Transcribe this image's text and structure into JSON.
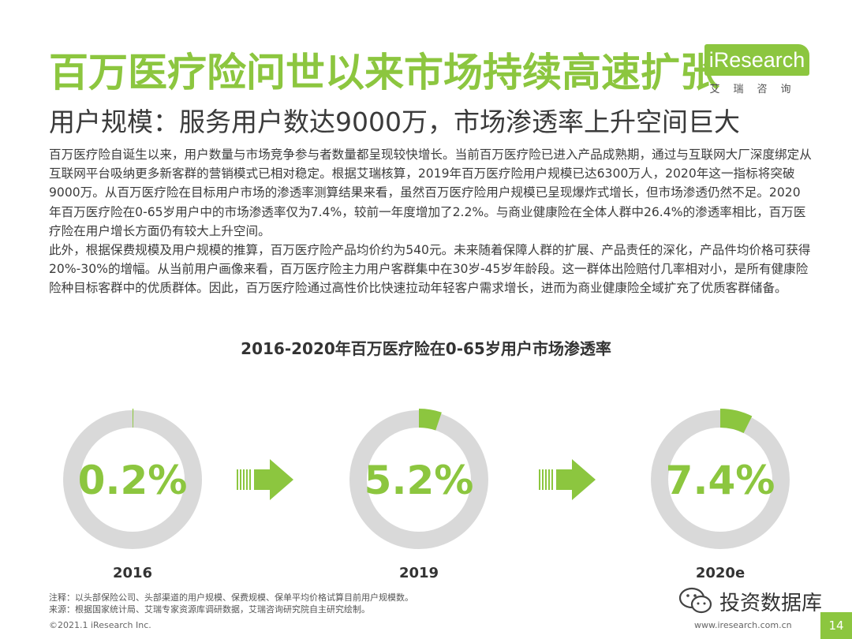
{
  "header": {
    "title": "百万医疗险问世以来市场持续高速扩张",
    "subtitle": "用户规模：服务用户数达9000万，市场渗透率上升空间巨大"
  },
  "logo": {
    "brand": "iResearch",
    "sub": "艾瑞咨询"
  },
  "body": {
    "paragraph1": "百万医疗险自诞生以来，用户数量与市场竞争参与者数量都呈现较快增长。当前百万医疗险已进入产品成熟期，通过与互联网大厂深度绑定从互联网平台吸纳更多新客群的营销模式已相对稳定。根据艾瑞核算，2019年百万医疗险用户规模已达6300万人，2020年这一指标将突破9000万。从百万医疗险在目标用户市场的渗透率测算结果来看，虽然百万医疗险用户规模已呈现爆炸式增长，但市场渗透仍然不足。2020年百万医疗险在0-65岁用户中的市场渗透率仅为7.4%，较前一年度增加了2.2%。与商业健康险在全体人群中26.4%的渗透率相比，百万医疗险在用户增长方面仍有较大上升空间。",
    "paragraph2": "此外，根据保费规模及用户规模的推算，百万医疗险产品均价约为540元。未来随着保障人群的扩展、产品责任的深化，产品件均价格可获得20%-30%的增幅。从当前用户画像来看，百万医疗险主力用户客群集中在30岁-45岁年龄段。这一群体出险赔付几率相对小，是所有健康险险种目标客群中的优质群体。因此，百万医疗险通过高性价比快速拉动年轻客户需求增长，进而为商业健康险全域扩充了优质客群储备。"
  },
  "chart_data": {
    "type": "donut",
    "title": "2016-2020年百万医疗险在0-65岁用户市场渗透率",
    "categories": [
      "2016",
      "2019",
      "2020e"
    ],
    "values": [
      0.2,
      5.2,
      7.4
    ],
    "labels": [
      "0.2%",
      "5.2%",
      "7.4%"
    ],
    "unit": "%",
    "colors": {
      "filled": "#8cc63f",
      "remaining": "#d9d9d9",
      "arrow": "#8cc63f"
    }
  },
  "footer": {
    "note": "注释：以头部保险公司、头部渠道的用户规模、保费规模、保单平均价格试算目前用户规模数。",
    "source": "来源：根据国家统计局、艾瑞专家资源库调研数据，艾瑞咨询研究院自主研究绘制。",
    "copyright": "©2021.1 iResearch Inc.",
    "website": "www.iresearch.com.cn",
    "page": "14"
  },
  "watermark": {
    "text": "投资数据库",
    "icon": "wechat-icon"
  }
}
